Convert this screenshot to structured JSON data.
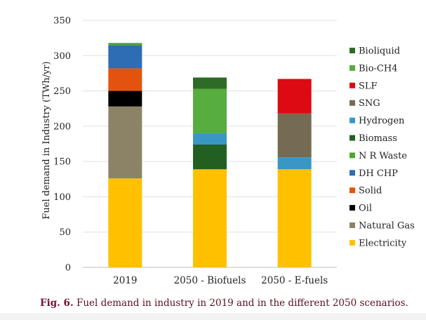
{
  "chart_data": {
    "type": "stacked-bar",
    "title": "",
    "xlabel": "",
    "ylabel": "Fuel demand in Industry (TWh/yr)",
    "ylim": [
      0,
      350
    ],
    "yticks": [
      0,
      50,
      100,
      150,
      200,
      250,
      300,
      350
    ],
    "grid": true,
    "legend_position": "right",
    "categories": [
      "2019",
      "2050 - Biofuels",
      "2050 - E-fuels"
    ],
    "series": [
      {
        "name": "Electricity",
        "color": "#ffc000",
        "values": [
          126,
          139,
          139
        ]
      },
      {
        "name": "Natural Gas",
        "color": "#8c8367",
        "values": [
          102,
          0,
          0
        ]
      },
      {
        "name": "Oil",
        "color": "#000000",
        "values": [
          22,
          0,
          0
        ]
      },
      {
        "name": "Solid",
        "color": "#e3530d",
        "values": [
          32,
          0,
          0
        ]
      },
      {
        "name": "DH CHP",
        "color": "#2e6db4",
        "values": [
          33,
          0,
          0
        ]
      },
      {
        "name": "N R Waste",
        "color": "#4ea72e",
        "values": [
          3,
          0,
          0
        ]
      },
      {
        "name": "Biomass",
        "color": "#245f22",
        "values": [
          0,
          35,
          0
        ]
      },
      {
        "name": "Hydrogen",
        "color": "#3a97c4",
        "values": [
          0,
          16,
          17
        ]
      },
      {
        "name": "SNG",
        "color": "#756a52",
        "values": [
          0,
          0,
          62
        ]
      },
      {
        "name": "SLF",
        "color": "#dd0a14",
        "values": [
          0,
          0,
          49
        ]
      },
      {
        "name": "Bio-CH4",
        "color": "#57ad3d",
        "values": [
          0,
          63,
          0
        ]
      },
      {
        "name": "Bioliquid",
        "color": "#2e6b26",
        "values": [
          0,
          16,
          0
        ]
      }
    ],
    "legend_order": [
      "Bioliquid",
      "Bio-CH4",
      "SLF",
      "SNG",
      "Hydrogen",
      "Biomass",
      "N R Waste",
      "DH CHP",
      "Solid",
      "Oil",
      "Natural Gas",
      "Electricity"
    ]
  },
  "caption": {
    "label": "Fig. 6.",
    "text": "Fuel demand in industry in 2019 and in the different 2050 scenarios."
  }
}
